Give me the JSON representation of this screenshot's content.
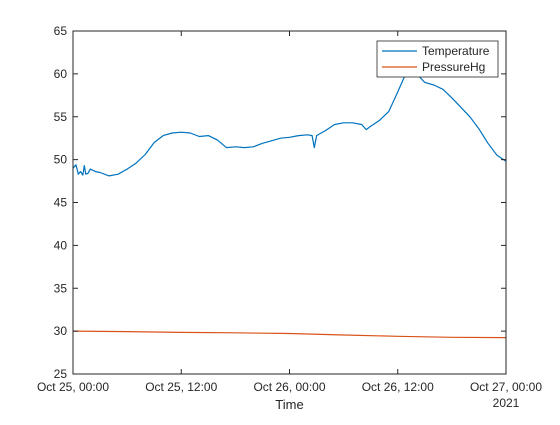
{
  "chart_data": {
    "type": "line",
    "xlabel": "Time",
    "x_secondary_label": "2021",
    "ylabel": "",
    "title": "",
    "xlim": [
      "2021-10-25T00:00",
      "2021-10-27T00:00"
    ],
    "x_ticks": [
      {
        "t": "2021-10-25T00:00",
        "label": "Oct 25, 00:00"
      },
      {
        "t": "2021-10-25T12:00",
        "label": "Oct 25, 12:00"
      },
      {
        "t": "2021-10-26T00:00",
        "label": "Oct 26, 00:00"
      },
      {
        "t": "2021-10-26T12:00",
        "label": "Oct 26, 12:00"
      },
      {
        "t": "2021-10-27T00:00",
        "label": "Oct 27, 00:00"
      }
    ],
    "ylim": [
      25,
      65
    ],
    "y_ticks": [
      25,
      30,
      35,
      40,
      45,
      50,
      55,
      60,
      65
    ],
    "grid": false,
    "legend_position": "top-right",
    "series": [
      {
        "name": "Temperature",
        "color": "#0072BD",
        "points": [
          [
            "2021-10-25T00:00",
            49.0
          ],
          [
            "2021-10-25T00:20",
            49.4
          ],
          [
            "2021-10-25T00:35",
            48.3
          ],
          [
            "2021-10-25T00:50",
            48.6
          ],
          [
            "2021-10-25T01:05",
            48.2
          ],
          [
            "2021-10-25T01:15",
            49.3
          ],
          [
            "2021-10-25T01:25",
            48.3
          ],
          [
            "2021-10-25T01:40",
            48.4
          ],
          [
            "2021-10-25T01:55",
            48.9
          ],
          [
            "2021-10-25T02:30",
            48.6
          ],
          [
            "2021-10-25T03:00",
            48.5
          ],
          [
            "2021-10-25T04:00",
            48.1
          ],
          [
            "2021-10-25T05:00",
            48.3
          ],
          [
            "2021-10-25T06:00",
            48.9
          ],
          [
            "2021-10-25T07:00",
            49.6
          ],
          [
            "2021-10-25T08:00",
            50.6
          ],
          [
            "2021-10-25T09:00",
            52.0
          ],
          [
            "2021-10-25T10:00",
            52.8
          ],
          [
            "2021-10-25T11:00",
            53.1
          ],
          [
            "2021-10-25T12:00",
            53.2
          ],
          [
            "2021-10-25T13:00",
            53.1
          ],
          [
            "2021-10-25T14:00",
            52.7
          ],
          [
            "2021-10-25T15:00",
            52.8
          ],
          [
            "2021-10-25T16:00",
            52.3
          ],
          [
            "2021-10-25T17:00",
            51.4
          ],
          [
            "2021-10-25T18:00",
            51.5
          ],
          [
            "2021-10-25T19:00",
            51.4
          ],
          [
            "2021-10-25T20:00",
            51.5
          ],
          [
            "2021-10-25T21:00",
            51.9
          ],
          [
            "2021-10-25T22:00",
            52.2
          ],
          [
            "2021-10-25T23:00",
            52.5
          ],
          [
            "2021-10-26T00:00",
            52.6
          ],
          [
            "2021-10-26T01:00",
            52.8
          ],
          [
            "2021-10-26T02:00",
            52.9
          ],
          [
            "2021-10-26T02:30",
            52.8
          ],
          [
            "2021-10-26T02:45",
            51.4
          ],
          [
            "2021-10-26T03:00",
            52.8
          ],
          [
            "2021-10-26T04:00",
            53.4
          ],
          [
            "2021-10-26T05:00",
            54.1
          ],
          [
            "2021-10-26T06:00",
            54.3
          ],
          [
            "2021-10-26T07:00",
            54.3
          ],
          [
            "2021-10-26T08:00",
            54.1
          ],
          [
            "2021-10-26T08:30",
            53.5
          ],
          [
            "2021-10-26T09:00",
            53.9
          ],
          [
            "2021-10-26T10:00",
            54.6
          ],
          [
            "2021-10-26T11:00",
            55.6
          ],
          [
            "2021-10-26T12:00",
            57.9
          ],
          [
            "2021-10-26T13:00",
            60.3
          ],
          [
            "2021-10-26T13:30",
            60.8
          ],
          [
            "2021-10-26T14:00",
            60.1
          ],
          [
            "2021-10-26T15:00",
            59.0
          ],
          [
            "2021-10-26T16:00",
            58.7
          ],
          [
            "2021-10-26T17:00",
            58.2
          ],
          [
            "2021-10-26T18:00",
            57.2
          ],
          [
            "2021-10-26T19:00",
            56.1
          ],
          [
            "2021-10-26T20:00",
            55.0
          ],
          [
            "2021-10-26T21:00",
            53.6
          ],
          [
            "2021-10-26T22:00",
            51.9
          ],
          [
            "2021-10-26T23:00",
            50.5
          ],
          [
            "2021-10-27T00:00",
            49.8
          ]
        ]
      },
      {
        "name": "PressureHg",
        "color": "#D95319",
        "points": [
          [
            "2021-10-25T00:00",
            30.0
          ],
          [
            "2021-10-25T06:00",
            29.95
          ],
          [
            "2021-10-25T12:00",
            29.85
          ],
          [
            "2021-10-25T18:00",
            29.8
          ],
          [
            "2021-10-26T00:00",
            29.72
          ],
          [
            "2021-10-26T06:00",
            29.55
          ],
          [
            "2021-10-26T12:00",
            29.4
          ],
          [
            "2021-10-26T18:00",
            29.28
          ],
          [
            "2021-10-27T00:00",
            29.25
          ]
        ]
      }
    ]
  }
}
